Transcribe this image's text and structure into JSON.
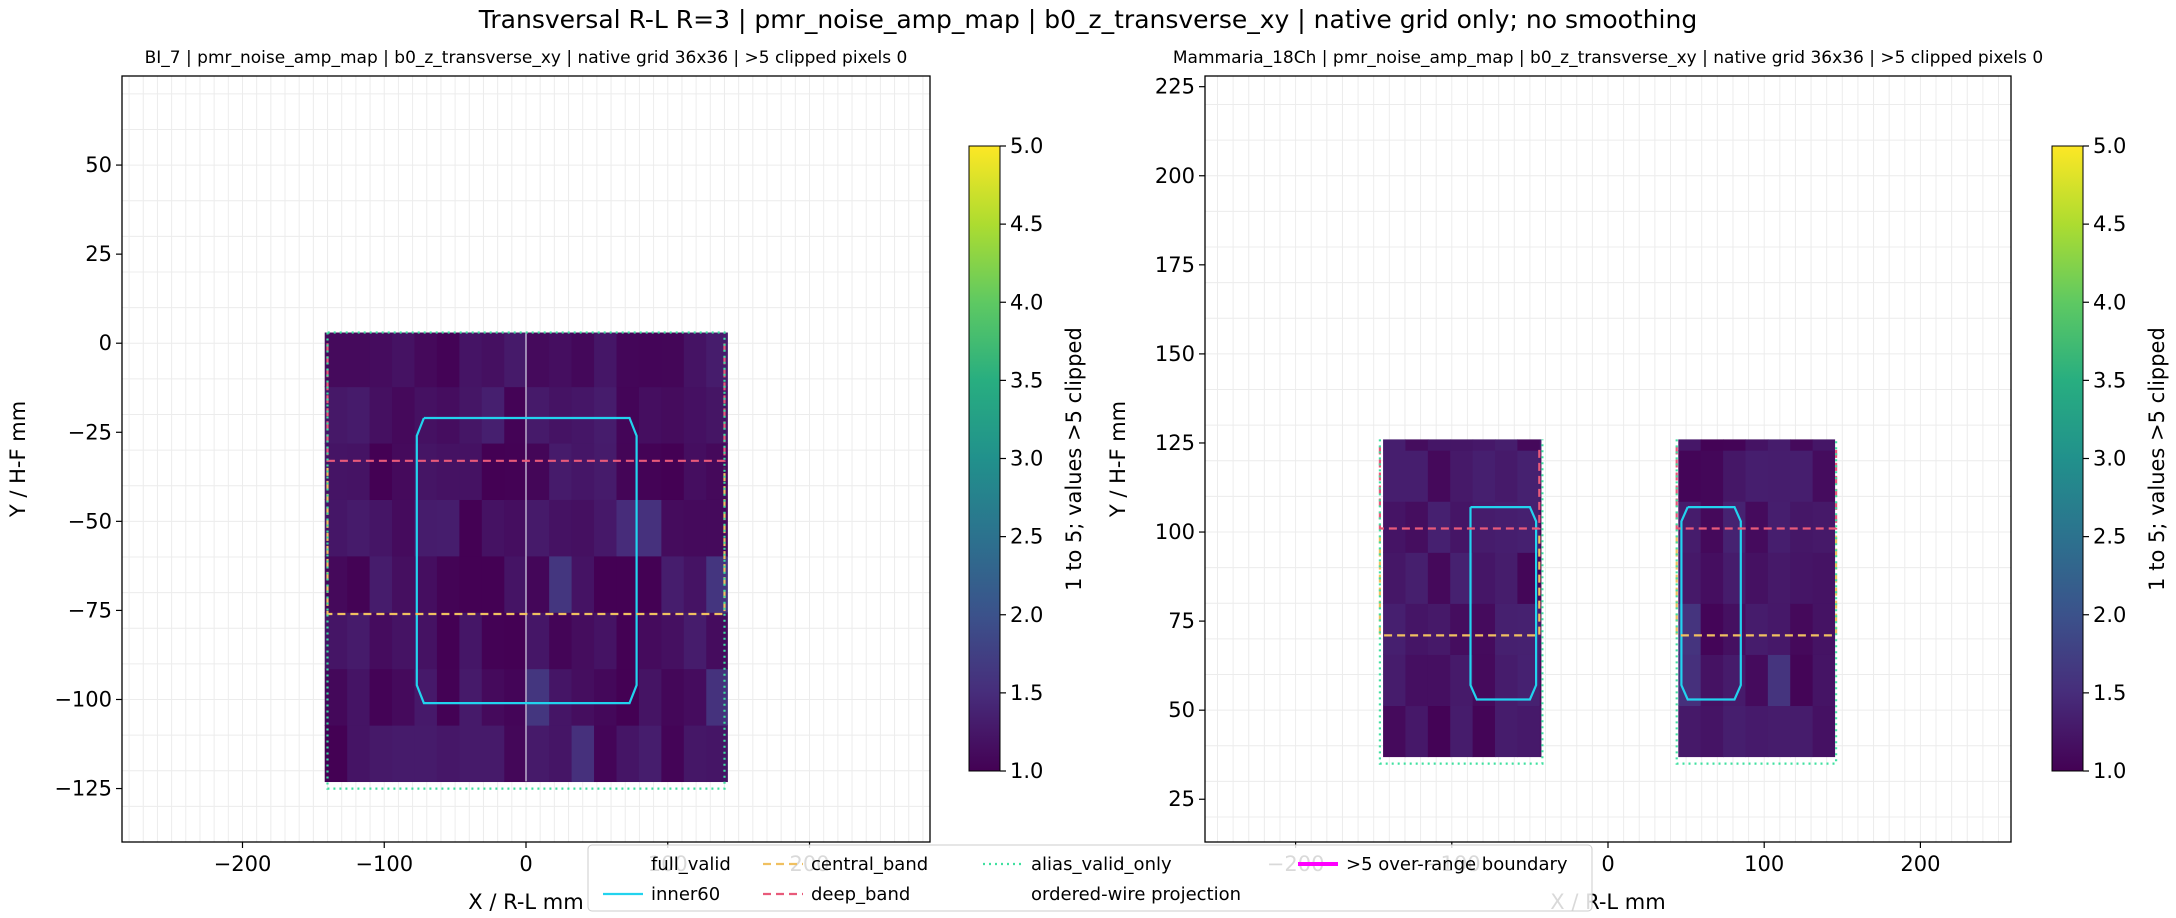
{
  "suptitle": "Transversal R-L R=3 | pmr_noise_amp_map | b0_z_transverse_xy | native grid only; no smoothing",
  "legend": {
    "items": [
      {
        "label": "full_valid",
        "color": "#ffffff",
        "style": "solid"
      },
      {
        "label": "inner60",
        "color": "#22d3ee",
        "style": "solid"
      },
      {
        "label": "central_band",
        "color": "#f0c060",
        "style": "dashed"
      },
      {
        "label": "deep_band",
        "color": "#e85a7a",
        "style": "dashed"
      },
      {
        "label": "alias_valid_only",
        "color": "#40e0a0",
        "style": "dotted"
      },
      {
        "label": "ordered-wire projection",
        "color": "#ffffff",
        "style": "solid"
      },
      {
        "label": ">5 over-range boundary",
        "color": "#ff00ff",
        "style": "solid"
      }
    ]
  },
  "chart_data": [
    {
      "type": "heatmap",
      "title": "BI_7 | pmr_noise_amp_map | b0_z_transverse_xy | native grid 36x36 | >5 clipped pixels 0",
      "xlabel": "X / R-L mm",
      "ylabel": "Y / H-F mm",
      "xlim": [
        -285,
        285
      ],
      "ylim": [
        -140,
        75
      ],
      "xticks": [
        -200,
        -100,
        0,
        100,
        200
      ],
      "yticks": [
        50,
        25,
        0,
        -25,
        -50,
        -75,
        -100,
        -125
      ],
      "grid": true,
      "colorbar": {
        "label": "1 to 5; values >5 clipped",
        "vmin": 1,
        "vmax": 5,
        "ticks": [
          1.0,
          1.5,
          2.0,
          2.5,
          3.0,
          3.5,
          4.0,
          4.5,
          5.0
        ]
      },
      "data_blocks": [
        {
          "x0": -142,
          "x1": 142,
          "y0": -123,
          "y1": 3,
          "mean_value": 1.15
        }
      ],
      "regions": {
        "inner60": [
          [
            -72,
            -21
          ],
          [
            -77,
            -26
          ],
          [
            -77,
            -96
          ],
          [
            -72,
            -101
          ],
          [
            73,
            -101
          ],
          [
            78,
            -96
          ],
          [
            78,
            -26
          ],
          [
            73,
            -21
          ],
          [
            -72,
            -21
          ]
        ],
        "deep_band": [
          [
            -140,
            0
          ],
          [
            -140,
            -33
          ],
          [
            140,
            -33
          ],
          [
            140,
            0
          ]
        ],
        "central_band": [
          [
            -140,
            -35
          ],
          [
            -140,
            -76
          ],
          [
            140,
            -76
          ],
          [
            140,
            -35
          ]
        ],
        "alias_valid_only": [
          [
            -140,
            3
          ],
          [
            -140,
            -125
          ],
          [
            140,
            -125
          ],
          [
            140,
            3
          ],
          [
            -140,
            3
          ]
        ]
      }
    },
    {
      "type": "heatmap",
      "title": "Mammaria_18Ch | pmr_noise_amp_map | b0_z_transverse_xy | native grid 36x36 | >5 clipped pixels 0",
      "xlabel": "X / R-L mm",
      "ylabel": "Y / H-F mm",
      "xlim": [
        -258,
        258
      ],
      "ylim": [
        13,
        228
      ],
      "xticks": [
        -200,
        -100,
        0,
        100,
        200
      ],
      "yticks": [
        225,
        200,
        175,
        150,
        125,
        100,
        75,
        50,
        25
      ],
      "grid": true,
      "colorbar": {
        "label": "1 to 5; values >5 clipped",
        "vmin": 1,
        "vmax": 5,
        "ticks": [
          1.0,
          1.5,
          2.0,
          2.5,
          3.0,
          3.5,
          4.0,
          4.5,
          5.0
        ]
      },
      "data_blocks": [
        {
          "x0": -144,
          "x1": -43,
          "y0": 37,
          "y1": 126,
          "mean_value": 1.2
        },
        {
          "x0": 45,
          "x1": 145,
          "y0": 37,
          "y1": 126,
          "mean_value": 1.2
        }
      ],
      "regions": {
        "inner60_left": [
          [
            -88,
            107
          ],
          [
            -88,
            57
          ],
          [
            -84,
            53
          ],
          [
            -50,
            53
          ],
          [
            -46,
            57
          ],
          [
            -46,
            103
          ],
          [
            -50,
            107
          ],
          [
            -88,
            107
          ]
        ],
        "inner60_right": [
          [
            51,
            107
          ],
          [
            47,
            103
          ],
          [
            47,
            57
          ],
          [
            51,
            53
          ],
          [
            81,
            53
          ],
          [
            85,
            57
          ],
          [
            85,
            103
          ],
          [
            81,
            107
          ],
          [
            51,
            107
          ]
        ],
        "deep_band_left": [
          [
            -146,
            124
          ],
          [
            -146,
            101
          ],
          [
            -44,
            101
          ],
          [
            -44,
            124
          ]
        ],
        "deep_band_right": [
          [
            44,
            124
          ],
          [
            44,
            101
          ],
          [
            146,
            101
          ],
          [
            146,
            124
          ]
        ],
        "central_band_left": [
          [
            -146,
            99
          ],
          [
            -146,
            71
          ],
          [
            -44,
            71
          ],
          [
            -44,
            99
          ]
        ],
        "central_band_right": [
          [
            44,
            99
          ],
          [
            44,
            71
          ],
          [
            146,
            71
          ],
          [
            146,
            99
          ]
        ],
        "alias_left": [
          [
            -146,
            126
          ],
          [
            -146,
            35
          ],
          [
            -42,
            35
          ],
          [
            -42,
            126
          ]
        ],
        "alias_right": [
          [
            44,
            126
          ],
          [
            44,
            35
          ],
          [
            146,
            35
          ],
          [
            146,
            126
          ]
        ]
      }
    }
  ]
}
